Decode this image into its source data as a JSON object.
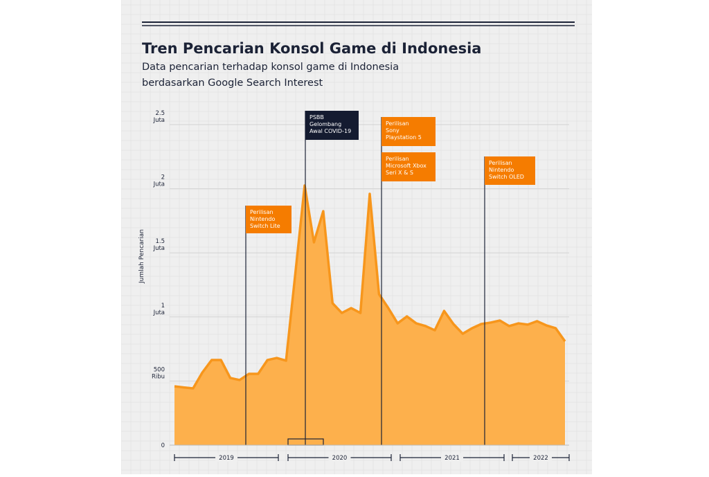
{
  "chart_data": {
    "type": "area",
    "title": "Tren Pencarian Konsol Game di Indonesia",
    "subtitle": [
      "Data pencarian terhadap konsol game di Indonesia",
      "berdasarkan Google Search Interest"
    ],
    "y_label": "Jumlah Pencarian",
    "color": "#fdb04c",
    "line_color": "#f7961c",
    "values": [
      459000,
      450000,
      443000,
      567000,
      664000,
      664000,
      524000,
      508000,
      556000,
      556000,
      664000,
      680000,
      659000,
      1340000,
      2025000,
      1582000,
      1825000,
      1107000,
      1031000,
      1069000,
      1031000,
      1960000,
      1177000,
      1069000,
      950000,
      1004000,
      950000,
      929000,
      896000,
      1047000,
      945000,
      869000,
      912000,
      945000,
      956000,
      972000,
      929000,
      950000,
      940000,
      967000,
      934000,
      912000,
      810000
    ],
    "ylim": [
      0,
      2500000
    ],
    "yticks": [
      0,
      {
        "value": 500000,
        "label": "500 Ribu"
      },
      {
        "value": 1000000,
        "label": "1 Juta"
      },
      {
        "value": 1500000,
        "label": "1.5 Juta"
      },
      {
        "value": 2000000,
        "label": "2 Juta"
      },
      {
        "value": 2500000,
        "label": "2.5 Juta"
      }
    ],
    "grid": true,
    "years": [
      "2019",
      "2020",
      "2021",
      "2022"
    ],
    "annotations": [
      {
        "lines": [
          "Perilisan",
          "Nintendo",
          "Switch Lite"
        ],
        "color": "#f57c00"
      },
      {
        "lines": [
          "PSBB",
          "Gelombang",
          "Awal COVID-19"
        ],
        "color": "#141b30"
      },
      {
        "lines": [
          "Perilisan",
          "Sony",
          "Playstation 5"
        ],
        "color": "#f57c00"
      },
      {
        "lines": [
          "Perilisan",
          "Microsoft Xbox",
          "Seri X & S"
        ],
        "color": "#f57c00"
      },
      {
        "lines": [
          "Perilisan",
          "Nintendo",
          "Switch OLED"
        ],
        "color": "#f57c00"
      }
    ]
  }
}
